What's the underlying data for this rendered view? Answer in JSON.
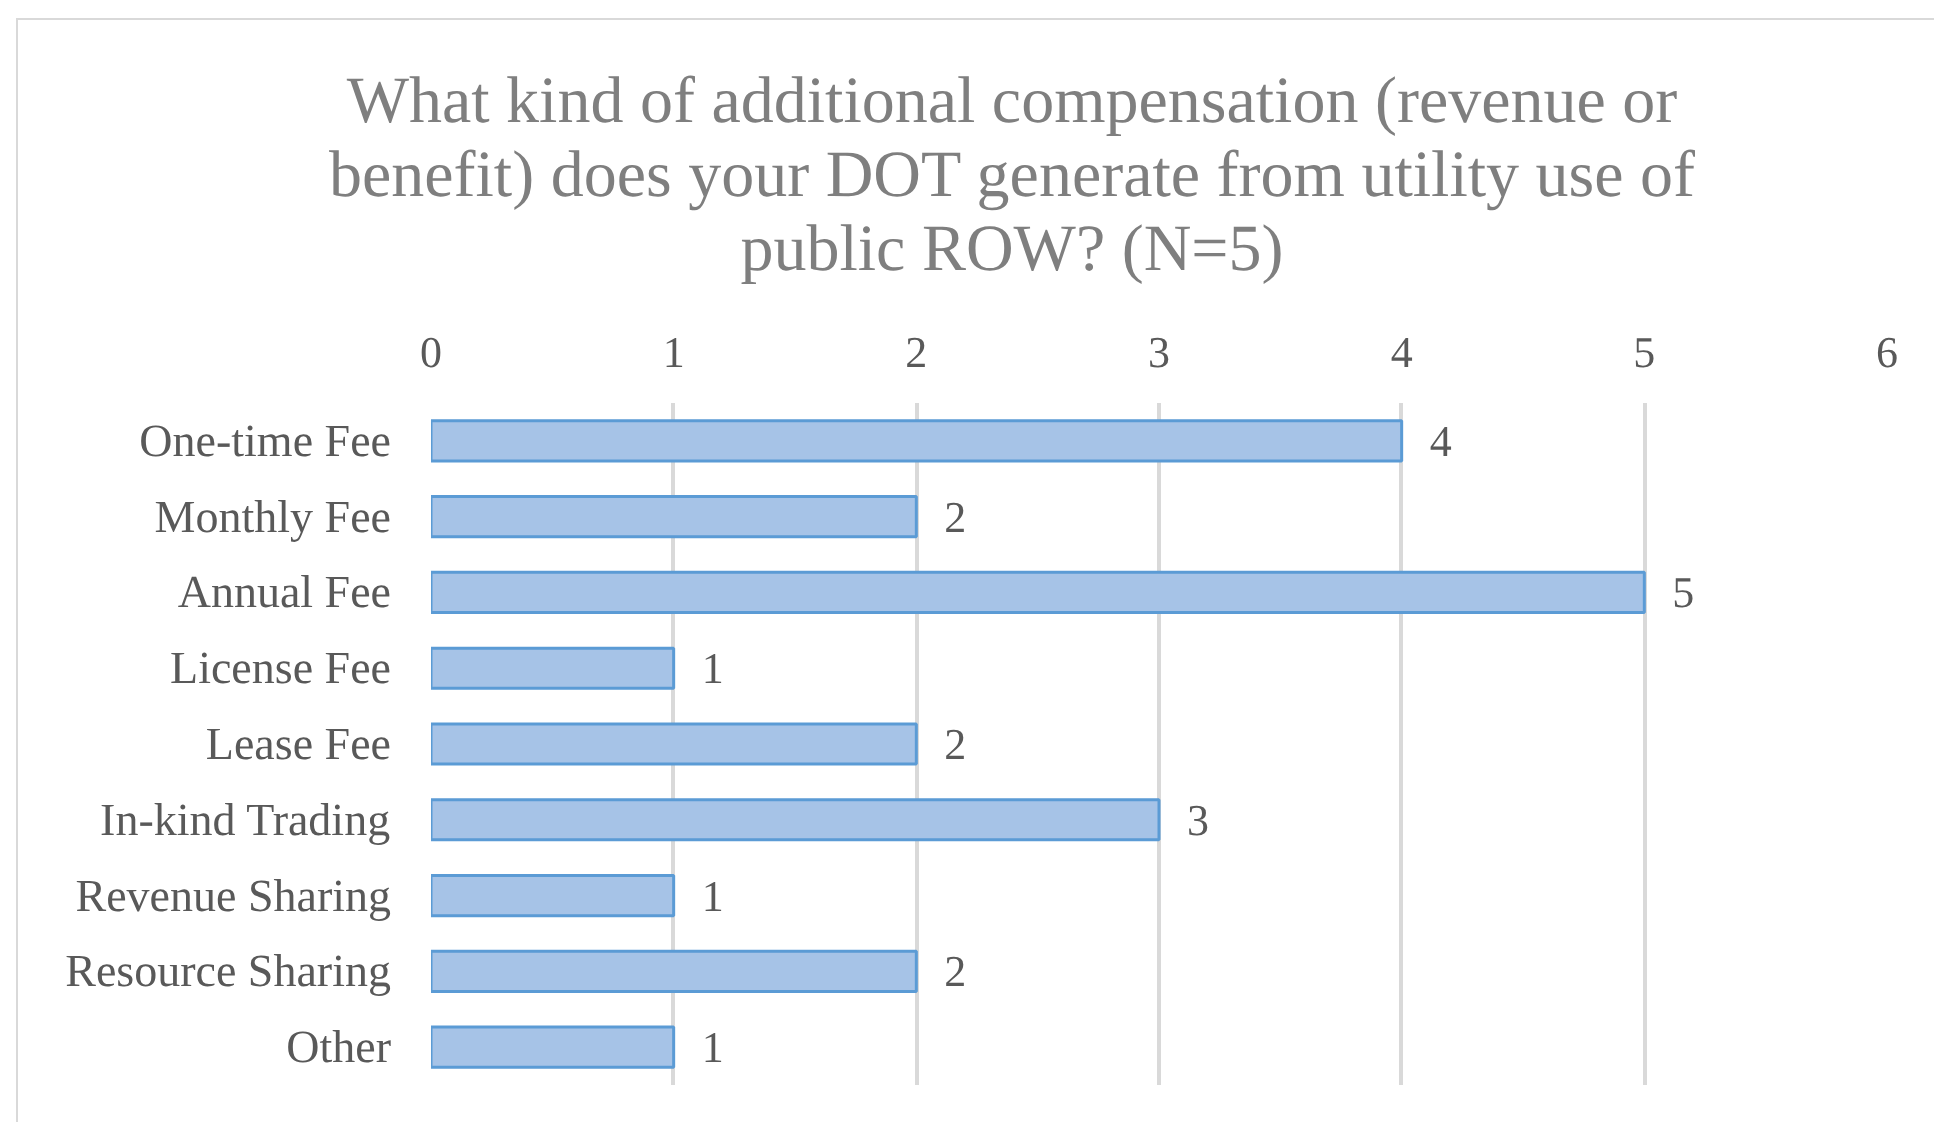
{
  "chart_data": {
    "type": "bar",
    "orientation": "horizontal",
    "title": "What kind of additional compensation (revenue or\nbenefit) does your DOT generate from utility use of\npublic ROW? (N=5)",
    "categories": [
      "One-time Fee",
      "Monthly Fee",
      "Annual Fee",
      "License Fee",
      "Lease Fee",
      "In-kind Trading",
      "Revenue Sharing",
      "Resource Sharing",
      "Other"
    ],
    "values": [
      4,
      2,
      5,
      1,
      2,
      3,
      1,
      2,
      1
    ],
    "color": "#a6c3e7",
    "xlim": [
      0,
      6
    ],
    "xticks": [
      0,
      1,
      2,
      3,
      4,
      5,
      6
    ],
    "grid": "x",
    "data_labels": true
  }
}
